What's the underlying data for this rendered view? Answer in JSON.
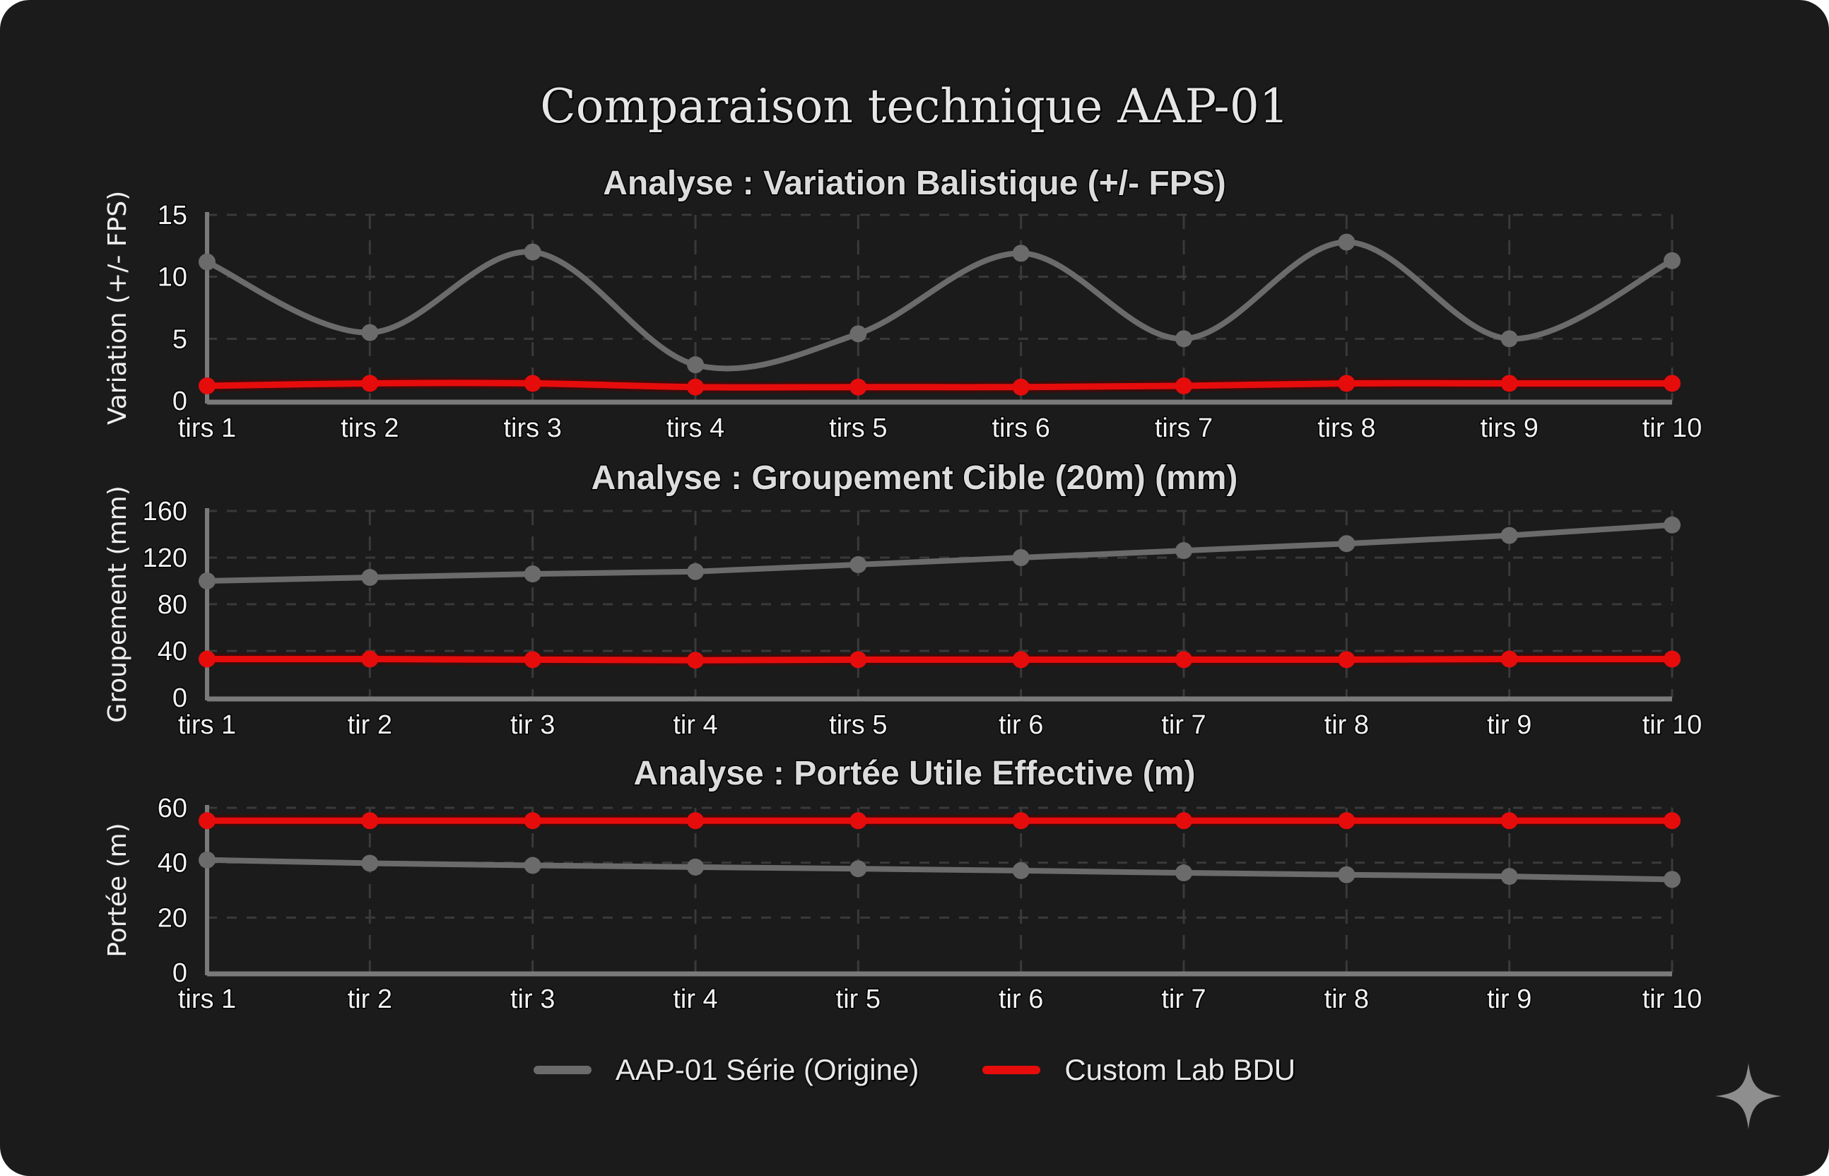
{
  "title": "Comparaison technique AAP-01",
  "colors": {
    "background": "#1b1b1b",
    "series_origin": "#6b6b6b",
    "series_custom": "#e60c0c",
    "grid": "#3a3a3a",
    "axis": "#7a7a7a"
  },
  "legend": [
    {
      "label": "AAP-01 Série (Origine)",
      "color": "#6b6b6b"
    },
    {
      "label": "Custom Lab BDU",
      "color": "#e60c0c"
    }
  ],
  "watermark_icon": "sparkle-icon",
  "chart_data": [
    {
      "type": "line",
      "title": "Analyse : Variation Balistique (+/- FPS)",
      "xlabel": "",
      "ylabel": "Variation (+/- FPS)",
      "ylim": [
        0,
        15
      ],
      "yticks": [
        0,
        5,
        10,
        15
      ],
      "grid": true,
      "smooth": true,
      "categories": [
        "tirs 1",
        "tirs 2",
        "tirs 3",
        "tirs 4",
        "tirs 5",
        "tirs 6",
        "tirs 7",
        "tirs 8",
        "tirs 9",
        "tir 10"
      ],
      "series": [
        {
          "name": "AAP-01 Série (Origine)",
          "values": [
            11.2,
            5.5,
            12.0,
            2.9,
            5.4,
            11.9,
            5.0,
            12.8,
            5.0,
            11.3
          ]
        },
        {
          "name": "Custom Lab BDU",
          "values": [
            1.2,
            1.4,
            1.4,
            1.1,
            1.1,
            1.1,
            1.2,
            1.4,
            1.4,
            1.4
          ]
        }
      ]
    },
    {
      "type": "line",
      "title": "Analyse : Groupement Cible (20m) (mm)",
      "xlabel": "",
      "ylabel": "Groupement (mm)",
      "ylim": [
        0,
        160
      ],
      "yticks": [
        0,
        40,
        80,
        120,
        160
      ],
      "grid": true,
      "smooth": false,
      "categories": [
        "tirs 1",
        "tir 2",
        "tir 3",
        "tir 4",
        "tirs 5",
        "tir 6",
        "tir 7",
        "tir 8",
        "tir 9",
        "tir 10"
      ],
      "series": [
        {
          "name": "AAP-01 Série (Origine)",
          "values": [
            100,
            103,
            106,
            108,
            114,
            120,
            126,
            132,
            139,
            148
          ]
        },
        {
          "name": "Custom Lab BDU",
          "values": [
            33,
            33,
            32.5,
            32,
            32.5,
            32.5,
            32.5,
            32.5,
            33,
            33
          ]
        }
      ]
    },
    {
      "type": "line",
      "title": "Analyse : Portée Utile Effective (m)",
      "xlabel": "",
      "ylabel": "Portée (m)",
      "ylim": [
        0,
        60
      ],
      "yticks": [
        0,
        20,
        40,
        60
      ],
      "grid": true,
      "smooth": false,
      "categories": [
        "tirs 1",
        "tir 2",
        "tir 3",
        "tir 4",
        "tir 5",
        "tir 6",
        "tir 7",
        "tir 8",
        "tir 9",
        "tir 10"
      ],
      "series": [
        {
          "name": "AAP-01 Série (Origine)",
          "values": [
            41,
            39.8,
            39,
            38.4,
            37.8,
            37.1,
            36.3,
            35.6,
            35,
            33.9
          ]
        },
        {
          "name": "Custom Lab BDU",
          "values": [
            55.3,
            55.3,
            55.3,
            55.3,
            55.3,
            55.3,
            55.3,
            55.3,
            55.3,
            55.3
          ]
        }
      ]
    }
  ]
}
